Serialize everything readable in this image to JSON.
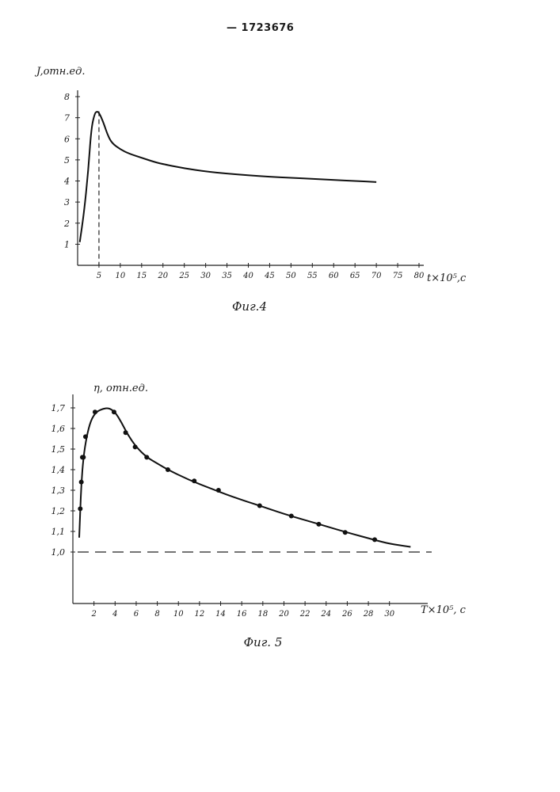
{
  "patent_number": "— 1723676",
  "chart_data": [
    {
      "type": "line",
      "caption": "Фиг.4",
      "ylabel": "J,отн.ед.",
      "xlabel": "t×10⁵,с",
      "xlim": [
        0,
        80
      ],
      "ylim": [
        0,
        8
      ],
      "x_ticks": [
        5,
        10,
        15,
        20,
        25,
        30,
        35,
        40,
        45,
        50,
        55,
        60,
        65,
        70,
        75,
        80
      ],
      "x_tick_labels": [
        "5",
        "10",
        "15",
        "20",
        "25",
        "30",
        "35",
        "40",
        "45",
        "50",
        "55",
        "60",
        "65",
        "70",
        "75",
        "80"
      ],
      "y_ticks": [
        1,
        2,
        3,
        4,
        5,
        6,
        7,
        8
      ],
      "y_tick_labels": [
        "1",
        "2",
        "3",
        "4",
        "5",
        "6",
        "7",
        "8"
      ],
      "reference_line": {
        "orientation": "vertical",
        "x": 5,
        "style": "dashed"
      },
      "series": [
        {
          "x": [
            0.5,
            1.5,
            2.5,
            3.2,
            4.0,
            4.5,
            5.0,
            6.0,
            7.0,
            8.0,
            10,
            12,
            15,
            18,
            20,
            25,
            30,
            35,
            40,
            45,
            50,
            55,
            60,
            65,
            70
          ],
          "y": [
            1.1,
            2.5,
            4.5,
            6.5,
            7.2,
            7.3,
            7.25,
            6.8,
            6.2,
            5.8,
            5.5,
            5.3,
            5.1,
            4.9,
            4.8,
            4.6,
            4.45,
            4.35,
            4.27,
            4.2,
            4.15,
            4.1,
            4.05,
            4.0,
            3.95
          ]
        }
      ]
    },
    {
      "type": "line",
      "caption": "Фиг. 5",
      "ylabel": "η, отн.ед.",
      "xlabel": "T×10⁵, с",
      "xlim": [
        0,
        34
      ],
      "ylim": [
        0.75,
        1.75
      ],
      "x_ticks": [
        2,
        4,
        6,
        8,
        10,
        12,
        14,
        16,
        18,
        20,
        22,
        24,
        26,
        28,
        30
      ],
      "x_tick_labels": [
        "2",
        "4",
        "6",
        "8",
        "10",
        "12",
        "14",
        "16",
        "18",
        "20",
        "22",
        "24",
        "26",
        "28",
        "30"
      ],
      "y_ticks": [
        1.0,
        1.1,
        1.2,
        1.3,
        1.4,
        1.5,
        1.6,
        1.7
      ],
      "y_tick_labels": [
        "1,0",
        "1,1",
        "1,2",
        "1,3",
        "1,4",
        "1,5",
        "1,6",
        "1,7"
      ],
      "reference_line": {
        "orientation": "horizontal",
        "y": 1.0,
        "style": "dashed"
      },
      "series": [
        {
          "curve_x": [
            0.6,
            0.7,
            0.8,
            1.0,
            1.3,
            1.7,
            2.2,
            2.8,
            3.4,
            4.0,
            4.6,
            5.2,
            6.0,
            7.0,
            8.0,
            9.0,
            11.0,
            13.0,
            15.0,
            17.7,
            20.0,
            22.0,
            24.0,
            26.0,
            28.5,
            30.0,
            32.0
          ],
          "curve_y": [
            1.07,
            1.2,
            1.33,
            1.46,
            1.56,
            1.64,
            1.68,
            1.695,
            1.7,
            1.68,
            1.63,
            1.57,
            1.51,
            1.46,
            1.43,
            1.4,
            1.35,
            1.31,
            1.27,
            1.225,
            1.185,
            1.155,
            1.125,
            1.095,
            1.06,
            1.04,
            1.025
          ],
          "points_x": [
            0.7,
            0.8,
            0.9,
            1.0,
            1.2,
            2.1,
            3.9,
            5.0,
            5.9,
            7.0,
            9.0,
            11.5,
            13.8,
            17.7,
            20.7,
            23.3,
            25.8,
            28.6
          ],
          "points_y": [
            1.21,
            1.34,
            1.46,
            1.46,
            1.56,
            1.68,
            1.68,
            1.58,
            1.51,
            1.46,
            1.4,
            1.345,
            1.3,
            1.225,
            1.175,
            1.135,
            1.095,
            1.06
          ]
        }
      ]
    }
  ]
}
